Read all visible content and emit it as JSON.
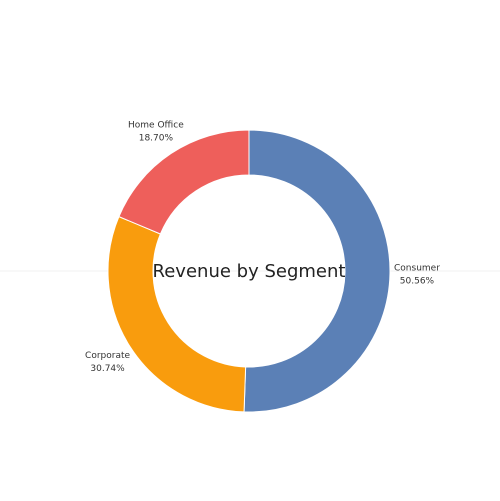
{
  "chart_data": {
    "type": "donut",
    "title": "Revenue by Segment",
    "categories": [
      "Consumer",
      "Corporate",
      "Home Office"
    ],
    "values": [
      50.56,
      30.74,
      18.7
    ],
    "value_labels": [
      "50.56%",
      "30.74%",
      "18.70%"
    ],
    "colors": [
      "#5b80b6",
      "#f99c0d",
      "#ee5f5b"
    ]
  }
}
